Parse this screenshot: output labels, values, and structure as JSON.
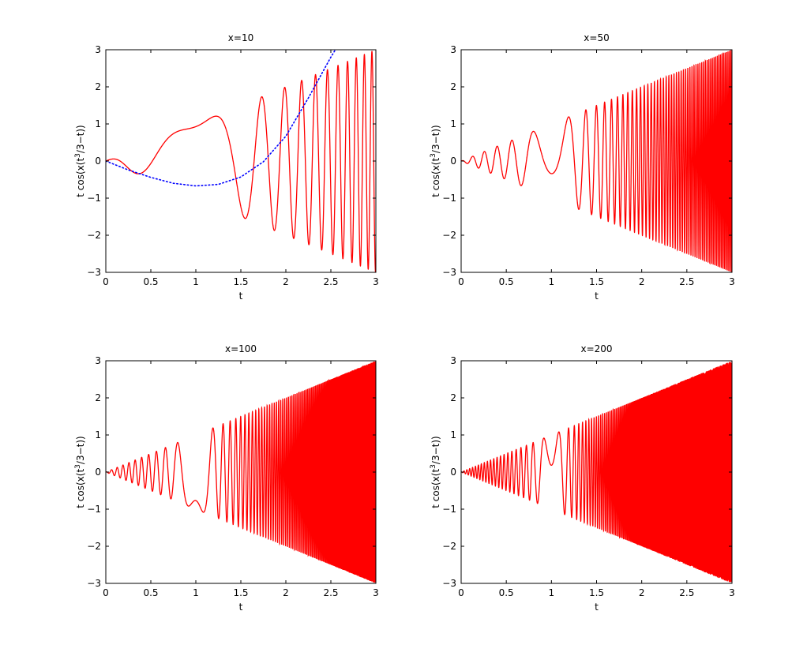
{
  "figure": {
    "background": "#ffffff"
  },
  "chart_data": [
    {
      "type": "line",
      "title": "x=10",
      "xlabel": "t",
      "ylabel": "t cos(x(t^3/3-t))",
      "ylabel_parts": {
        "prefix": "t cos(x(t",
        "sup": "3",
        "suffix": "/3−t))"
      },
      "xlim": [
        0,
        3
      ],
      "ylim": [
        -3,
        3
      ],
      "xticks": [
        0,
        0.5,
        1,
        1.5,
        2,
        2.5,
        3
      ],
      "xtick_labels": [
        "0",
        "0.5",
        "1",
        "1.5",
        "2",
        "2.5",
        "3"
      ],
      "yticks": [
        -3,
        -2,
        -1,
        0,
        1,
        2,
        3
      ],
      "ytick_labels": [
        "−3",
        "−2",
        "−1",
        "0",
        "1",
        "2",
        "3"
      ],
      "x_param": 10,
      "grid": false,
      "series": [
        {
          "function": "t*cos(x*(t^3/3-t))",
          "color": "#ff0000",
          "style": "solid"
        },
        {
          "function": "asymptotic approximation",
          "color": "#0000ff",
          "style": "dotted",
          "x": [
            0,
            0.25,
            0.5,
            0.75,
            1.0,
            1.25,
            1.5,
            1.75,
            2.0,
            2.25,
            2.5,
            2.55
          ],
          "y": [
            0,
            -0.24,
            -0.44,
            -0.6,
            -0.67,
            -0.63,
            -0.43,
            -0.02,
            0.67,
            1.7,
            2.8,
            3.0
          ]
        }
      ]
    },
    {
      "type": "line",
      "title": "x=50",
      "xlabel": "t",
      "ylabel": "t cos(x(t^3/3-t))",
      "ylabel_parts": {
        "prefix": "t cos(x(t",
        "sup": "3",
        "suffix": "/3−t))"
      },
      "xlim": [
        0,
        3
      ],
      "ylim": [
        -3,
        3
      ],
      "xticks": [
        0,
        0.5,
        1,
        1.5,
        2,
        2.5,
        3
      ],
      "xtick_labels": [
        "0",
        "0.5",
        "1",
        "1.5",
        "2",
        "2.5",
        "3"
      ],
      "yticks": [
        -3,
        -2,
        -1,
        0,
        1,
        2,
        3
      ],
      "ytick_labels": [
        "−3",
        "−2",
        "−1",
        "0",
        "1",
        "2",
        "3"
      ],
      "x_param": 50,
      "grid": false,
      "series": [
        {
          "function": "t*cos(x*(t^3/3-t))",
          "color": "#ff0000",
          "style": "solid"
        }
      ]
    },
    {
      "type": "line",
      "title": "x=100",
      "xlabel": "t",
      "ylabel": "t cos(x(t^3/3-t))",
      "ylabel_parts": {
        "prefix": "t cos(x(t",
        "sup": "3",
        "suffix": "/3−t))"
      },
      "xlim": [
        0,
        3
      ],
      "ylim": [
        -3,
        3
      ],
      "xticks": [
        0,
        0.5,
        1,
        1.5,
        2,
        2.5,
        3
      ],
      "xtick_labels": [
        "0",
        "0.5",
        "1",
        "1.5",
        "2",
        "2.5",
        "3"
      ],
      "yticks": [
        -3,
        -2,
        -1,
        0,
        1,
        2,
        3
      ],
      "ytick_labels": [
        "−3",
        "−2",
        "−1",
        "0",
        "1",
        "2",
        "3"
      ],
      "x_param": 100,
      "grid": false,
      "series": [
        {
          "function": "t*cos(x*(t^3/3-t))",
          "color": "#ff0000",
          "style": "solid"
        }
      ]
    },
    {
      "type": "line",
      "title": "x=200",
      "xlabel": "t",
      "ylabel": "t cos(x(t^3/3-t))",
      "ylabel_parts": {
        "prefix": "t cos(x(t",
        "sup": "3",
        "suffix": "/3−t))"
      },
      "xlim": [
        0,
        3
      ],
      "ylim": [
        -3,
        3
      ],
      "xticks": [
        0,
        0.5,
        1,
        1.5,
        2,
        2.5,
        3
      ],
      "xtick_labels": [
        "0",
        "0.5",
        "1",
        "1.5",
        "2",
        "2.5",
        "3"
      ],
      "yticks": [
        -3,
        -2,
        -1,
        0,
        1,
        2,
        3
      ],
      "ytick_labels": [
        "−3",
        "−2",
        "−1",
        "0",
        "1",
        "2",
        "3"
      ],
      "x_param": 200,
      "grid": false,
      "series": [
        {
          "function": "t*cos(x*(t^3/3-t))",
          "color": "#ff0000",
          "style": "solid"
        }
      ]
    }
  ]
}
